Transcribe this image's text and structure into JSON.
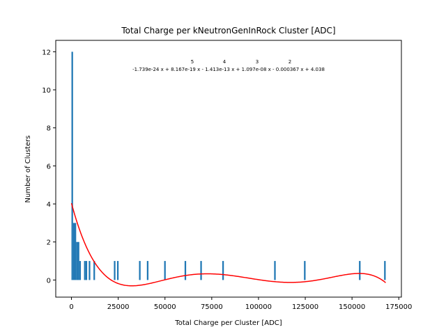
{
  "chart_data": {
    "type": "bar",
    "title": "Total Charge per kNeutronGenInRock Cluster [ADC]",
    "xlabel": "Total Charge per Cluster [ADC]",
    "ylabel": "Number of Clusters",
    "xlim": [
      -8400,
      176400
    ],
    "ylim": [
      -0.9,
      12.6
    ],
    "xticks": [
      0,
      25000,
      50000,
      75000,
      100000,
      125000,
      150000,
      175000
    ],
    "xtick_labels": [
      "0",
      "25000",
      "50000",
      "75000",
      "100000",
      "125000",
      "150000",
      "175000"
    ],
    "yticks": [
      0,
      2,
      4,
      6,
      8,
      10,
      12
    ],
    "ytick_labels": [
      "0",
      "2",
      "4",
      "6",
      "8",
      "10",
      "12"
    ],
    "bin_width": 840,
    "series": [
      {
        "name": "",
        "color": "#1f77b4",
        "bins": [
          {
            "x": 840,
            "count": 12
          },
          {
            "x": 1680,
            "count": 3
          },
          {
            "x": 2520,
            "count": 3
          },
          {
            "x": 3360,
            "count": 2
          },
          {
            "x": 4200,
            "count": 2
          },
          {
            "x": 5040,
            "count": 1
          },
          {
            "x": 7560,
            "count": 1
          },
          {
            "x": 8400,
            "count": 1
          },
          {
            "x": 10080,
            "count": 1
          },
          {
            "x": 12600,
            "count": 1
          },
          {
            "x": 23520,
            "count": 1
          },
          {
            "x": 25200,
            "count": 1
          },
          {
            "x": 36960,
            "count": 1
          },
          {
            "x": 41160,
            "count": 1
          },
          {
            "x": 50400,
            "count": 1
          },
          {
            "x": 61320,
            "count": 1
          },
          {
            "x": 69720,
            "count": 1
          },
          {
            "x": 81480,
            "count": 1
          },
          {
            "x": 109200,
            "count": 1
          },
          {
            "x": 125160,
            "count": 1
          },
          {
            "x": 154560,
            "count": 1
          },
          {
            "x": 168000,
            "count": 1
          }
        ]
      }
    ],
    "fit": {
      "type": "polynomial",
      "degree": 5,
      "color": "#ff0000",
      "coefficients": [
        -1.739e-24,
        8.167e-19,
        -1.413e-13,
        1.097e-08,
        -0.000367,
        4.038
      ],
      "x_range": [
        0,
        168000
      ],
      "equation_text": "-1.739e-24 x + 8.167e-19 x - 1.413e-13 x + 1.097e-08 x - 0.000367 x + 4.038",
      "exponents": [
        "5",
        "4",
        "3",
        "2"
      ]
    },
    "grid": false,
    "legend": "none"
  }
}
